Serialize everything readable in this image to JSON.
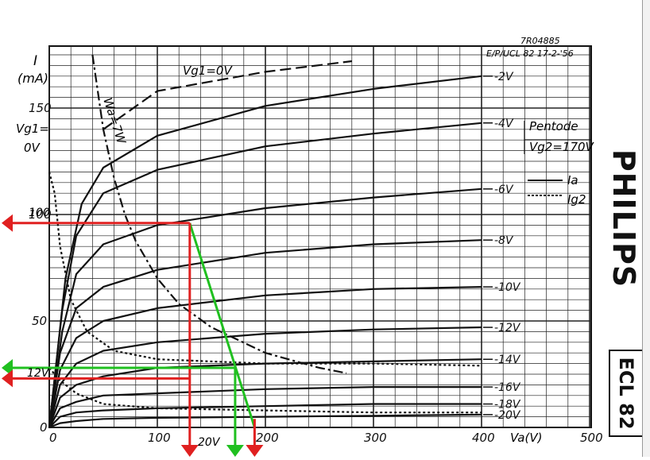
{
  "header": {
    "code": "7R04885",
    "ref": "E/P/UCL 82 17-2-'56"
  },
  "brand": "PHILIPS",
  "model": "ECL 82",
  "annotation": {
    "left_value_labels": [
      "100",
      "12V"
    ],
    "bottom_value_label": "20V"
  },
  "chart_data": {
    "type": "line",
    "title": "",
    "xlabel": "Va(V)",
    "ylabel": "I (mA)",
    "xlim": [
      0,
      500
    ],
    "ylim": [
      0,
      175
    ],
    "x_ticks": [
      {
        "value": 0,
        "label": "0"
      },
      {
        "value": 100,
        "label": "100"
      },
      {
        "value": 200,
        "label": "200"
      },
      {
        "value": 300,
        "label": "300"
      },
      {
        "value": 400,
        "label": "400"
      },
      {
        "value": 500,
        "label": "500"
      }
    ],
    "y_ticks": [
      {
        "value": 0,
        "label": "0"
      },
      {
        "value": 50,
        "label": "50"
      },
      {
        "value": 100,
        "label": "100"
      },
      {
        "value": 150,
        "label": "150"
      }
    ],
    "y_axis_symbol": "I",
    "y_axis_unit": "(mA)",
    "vg1_axis_label": "Vg1=",
    "vg1_axis_value": "0V",
    "legend": {
      "title": "Pentode",
      "condition": "Vg2=170V",
      "entries": [
        {
          "name": "Ia",
          "style": "solid"
        },
        {
          "name": "Ig2",
          "style": "dashed"
        }
      ]
    },
    "curve_labels": {
      "top": "Vg1=0V",
      "power_limit": "Wa=7W"
    },
    "series": [
      {
        "name": "Vg1=0V",
        "kind": "Ia",
        "style": "dashed",
        "points": [
          [
            50,
            140
          ],
          [
            100,
            158
          ],
          [
            200,
            167
          ],
          [
            280,
            172
          ]
        ]
      },
      {
        "name": "-2V",
        "kind": "Ia",
        "style": "solid",
        "points": [
          [
            0,
            0
          ],
          [
            15,
            70
          ],
          [
            30,
            105
          ],
          [
            50,
            122
          ],
          [
            100,
            137
          ],
          [
            200,
            151
          ],
          [
            300,
            159
          ],
          [
            400,
            165
          ]
        ]
      },
      {
        "name": "-4V",
        "kind": "Ia",
        "style": "solid",
        "points": [
          [
            0,
            0
          ],
          [
            12,
            55
          ],
          [
            25,
            90
          ],
          [
            50,
            110
          ],
          [
            100,
            121
          ],
          [
            200,
            132
          ],
          [
            300,
            138
          ],
          [
            400,
            143
          ]
        ]
      },
      {
        "name": "-6V",
        "kind": "Ia",
        "style": "solid",
        "points": [
          [
            0,
            0
          ],
          [
            12,
            45
          ],
          [
            25,
            72
          ],
          [
            50,
            86
          ],
          [
            100,
            95
          ],
          [
            200,
            103
          ],
          [
            300,
            108
          ],
          [
            400,
            112
          ]
        ]
      },
      {
        "name": "-8V",
        "kind": "Ia",
        "style": "solid",
        "points": [
          [
            0,
            0
          ],
          [
            10,
            35
          ],
          [
            25,
            56
          ],
          [
            50,
            66
          ],
          [
            100,
            74
          ],
          [
            200,
            82
          ],
          [
            300,
            86
          ],
          [
            400,
            88
          ]
        ]
      },
      {
        "name": "-10V",
        "kind": "Ia",
        "style": "solid",
        "points": [
          [
            0,
            0
          ],
          [
            10,
            27
          ],
          [
            25,
            42
          ],
          [
            50,
            50
          ],
          [
            100,
            56
          ],
          [
            200,
            62
          ],
          [
            300,
            65
          ],
          [
            400,
            66
          ]
        ]
      },
      {
        "name": "-12V",
        "kind": "Ia",
        "style": "solid",
        "points": [
          [
            0,
            0
          ],
          [
            10,
            20
          ],
          [
            25,
            30
          ],
          [
            50,
            36
          ],
          [
            100,
            40
          ],
          [
            200,
            44
          ],
          [
            300,
            46
          ],
          [
            400,
            47
          ]
        ]
      },
      {
        "name": "-14V",
        "kind": "Ia",
        "style": "solid",
        "points": [
          [
            0,
            0
          ],
          [
            10,
            14
          ],
          [
            25,
            20
          ],
          [
            50,
            24
          ],
          [
            100,
            28
          ],
          [
            200,
            30
          ],
          [
            300,
            31
          ],
          [
            400,
            32
          ]
        ]
      },
      {
        "name": "-16V",
        "kind": "Ia",
        "style": "solid",
        "points": [
          [
            0,
            0
          ],
          [
            10,
            9
          ],
          [
            25,
            12
          ],
          [
            50,
            15
          ],
          [
            100,
            16
          ],
          [
            200,
            18
          ],
          [
            300,
            19
          ],
          [
            400,
            19
          ]
        ]
      },
      {
        "name": "-18V",
        "kind": "Ia",
        "style": "solid",
        "points": [
          [
            0,
            0
          ],
          [
            10,
            5
          ],
          [
            25,
            7
          ],
          [
            50,
            8
          ],
          [
            100,
            9
          ],
          [
            200,
            10
          ],
          [
            300,
            11
          ],
          [
            400,
            11
          ]
        ]
      },
      {
        "name": "-20V",
        "kind": "Ia",
        "style": "solid",
        "points": [
          [
            0,
            0
          ],
          [
            10,
            2
          ],
          [
            25,
            3
          ],
          [
            50,
            4
          ],
          [
            100,
            4.5
          ],
          [
            200,
            5
          ],
          [
            300,
            5.5
          ],
          [
            400,
            6
          ]
        ]
      },
      {
        "name": "-2V",
        "kind": "Ig2",
        "style": "dashed",
        "points": [
          [
            0,
            120
          ],
          [
            5,
            110
          ],
          [
            10,
            85
          ],
          [
            20,
            60
          ],
          [
            35,
            45
          ],
          [
            60,
            36
          ],
          [
            100,
            32
          ],
          [
            200,
            30
          ],
          [
            300,
            30
          ],
          [
            400,
            29
          ]
        ]
      },
      {
        "name": "-14V",
        "kind": "Ig2",
        "style": "dashed",
        "points": [
          [
            0,
            28
          ],
          [
            10,
            22
          ],
          [
            25,
            16
          ],
          [
            50,
            11
          ],
          [
            100,
            9
          ],
          [
            200,
            8
          ],
          [
            300,
            7
          ],
          [
            400,
            7
          ]
        ]
      },
      {
        "name": "Wa=7W",
        "kind": "limit",
        "style": "dash-dot",
        "points": [
          [
            40,
            175
          ],
          [
            50,
            140
          ],
          [
            60,
            117
          ],
          [
            70,
            100
          ],
          [
            80,
            87.5
          ],
          [
            100,
            70
          ],
          [
            120,
            58
          ],
          [
            150,
            47
          ],
          [
            200,
            35
          ],
          [
            250,
            28
          ],
          [
            275,
            25.5
          ]
        ]
      }
    ],
    "load_line": {
      "points": [
        [
          130,
          96
        ],
        [
          190,
          0
        ]
      ],
      "markers": [
        {
          "axis": "x",
          "value": 130,
          "color": "#e02020"
        },
        {
          "axis": "x",
          "value": 172,
          "color": "#20c020"
        },
        {
          "axis": "x",
          "value": 190,
          "color": "#e02020"
        },
        {
          "axis": "y",
          "value": 96,
          "color": "#e02020"
        },
        {
          "axis": "y",
          "value": 28,
          "color": "#20c020"
        },
        {
          "axis": "y",
          "value": 23,
          "color": "#e02020"
        }
      ]
    },
    "grid": true
  },
  "colors": {
    "ink": "#111111",
    "grid": "#222222",
    "red": "#e02020",
    "green": "#20c020"
  }
}
